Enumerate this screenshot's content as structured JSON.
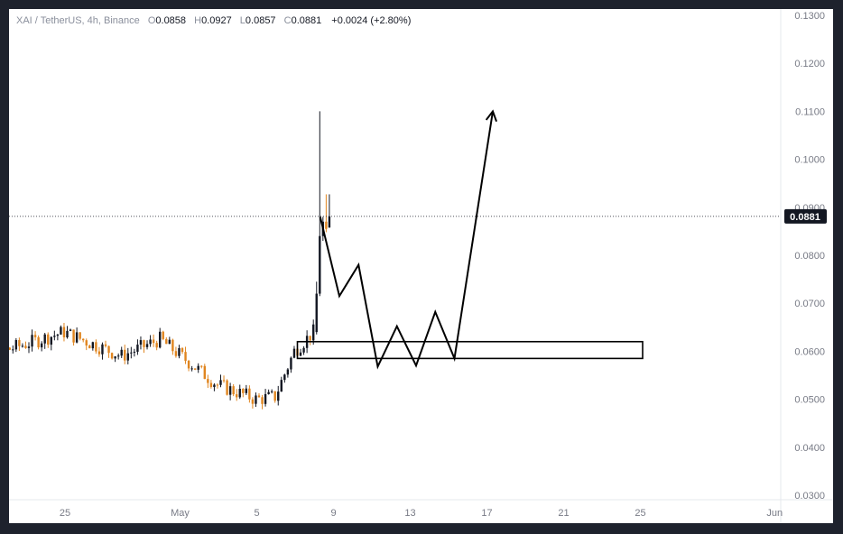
{
  "header": {
    "symbol": "XAI / TetherUS, 4h, Binance",
    "o_label": "O",
    "o_value": "0.0858",
    "h_label": "H",
    "h_value": "0.0927",
    "l_label": "L",
    "l_value": "0.0857",
    "c_label": "C",
    "c_value": "0.0881",
    "change": "+0.0024 (+2.80%)"
  },
  "colors": {
    "up": "#131722",
    "down": "#e0851f",
    "badge": "#131722",
    "line": "#000000"
  },
  "chart_data": {
    "type": "candlestick",
    "symbol": "XAI / TetherUS",
    "interval": "4h",
    "exchange": "Binance",
    "y_ticks": [
      "0.1300",
      "0.1200",
      "0.1100",
      "0.1000",
      "0.0900",
      "0.0800",
      "0.0700",
      "0.0600",
      "0.0500",
      "0.0400",
      "0.0300"
    ],
    "x_ticks": [
      "25",
      "May",
      "5",
      "9",
      "13",
      "17",
      "21",
      "25",
      "Jun"
    ],
    "ylim": [
      0.03,
      0.13
    ],
    "last_price": "0.0881",
    "key_points": [
      {
        "date": "Apr 21",
        "price": 0.0565
      },
      {
        "date": "Apr 27",
        "price": 0.064
      },
      {
        "date": "Apr 30",
        "price": 0.059
      },
      {
        "date": "May 2",
        "price": 0.0625
      },
      {
        "date": "May 5",
        "price": 0.053
      },
      {
        "date": "May 7",
        "price": 0.05
      },
      {
        "date": "May 8",
        "price": 0.0505
      },
      {
        "date": "May 9",
        "price": 0.06
      },
      {
        "date": "May 10",
        "price": 0.064
      },
      {
        "date": "May 10 spike high",
        "price": 0.11
      },
      {
        "date": "May 10 last",
        "price": 0.0881
      }
    ],
    "annotations": {
      "support_zone": {
        "from": "May 9",
        "to": "May 27",
        "low": 0.0585,
        "high": 0.062
      },
      "projection_path": [
        {
          "date": "May 10",
          "price": 0.088
        },
        {
          "date": "May 11",
          "price": 0.0715
        },
        {
          "date": "May 12",
          "price": 0.078
        },
        {
          "date": "May 13",
          "price": 0.0568
        },
        {
          "date": "May 14",
          "price": 0.0652
        },
        {
          "date": "May 15",
          "price": 0.057
        },
        {
          "date": "May 16",
          "price": 0.0682
        },
        {
          "date": "May 17",
          "price": 0.0585
        },
        {
          "date": "May 19",
          "price": 0.11
        }
      ]
    }
  }
}
